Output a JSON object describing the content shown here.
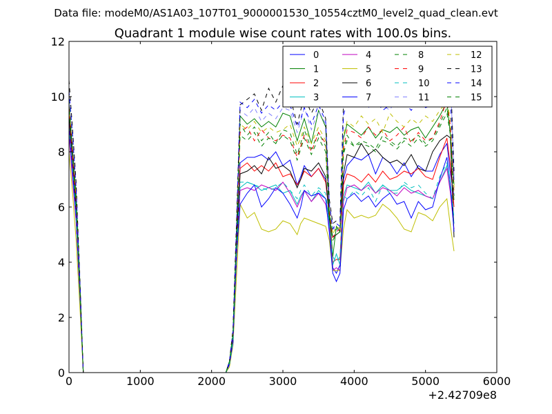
{
  "chart_data": {
    "type": "line",
    "suptitle": "Data file: modeM0/AS1A03_107T01_9000001530_10554cztM0_level2_quad_clean.evt",
    "title": "Quadrant 1 module wise count rates with 100.0s bins.",
    "xlabel": "",
    "ylabel": "",
    "xlim": [
      0,
      6000
    ],
    "ylim": [
      0,
      12
    ],
    "x_offset_label": "+2.42709e8",
    "xticks": [
      0,
      1000,
      2000,
      3000,
      4000,
      5000,
      6000
    ],
    "xtick_labels": [
      "0",
      "1000",
      "2000",
      "3000",
      "4000",
      "5000",
      "6000"
    ],
    "yticks": [
      0,
      2,
      4,
      6,
      8,
      10,
      12
    ],
    "ytick_labels": [
      "0",
      "2",
      "4",
      "6",
      "8",
      "10",
      "12"
    ],
    "legend_position": "top-right",
    "x": [
      0,
      50,
      100,
      150,
      200,
      2200,
      2250,
      2300,
      2350,
      2400,
      2500,
      2600,
      2700,
      2800,
      2900,
      3000,
      3100,
      3200,
      3250,
      3300,
      3400,
      3500,
      3600,
      3650,
      3700,
      3750,
      3800,
      3850,
      3900,
      4000,
      4100,
      4200,
      4300,
      4400,
      4500,
      4600,
      4700,
      4800,
      4900,
      5000,
      5100,
      5200,
      5300,
      5350,
      5400
    ],
    "series": [
      {
        "name": "0",
        "color": "#0000ff",
        "dash": "solid",
        "values": [
          9.1,
          7.8,
          5.9,
          3.1,
          0,
          0,
          0.3,
          1.2,
          4.6,
          7.6,
          7.8,
          7.8,
          7.9,
          7.7,
          8.0,
          7.5,
          7.7,
          6.8,
          7.1,
          7.5,
          7.1,
          7.4,
          7.0,
          5.8,
          3.8,
          3.6,
          3.9,
          7.0,
          7.5,
          7.8,
          7.7,
          7.9,
          7.2,
          7.8,
          7.6,
          7.2,
          7.6,
          7.1,
          7.5,
          7.3,
          7.3,
          7.9,
          8.3,
          7.2,
          6.4
        ]
      },
      {
        "name": "1",
        "color": "#008000",
        "dash": "solid",
        "values": [
          9.8,
          8.0,
          6.4,
          3.4,
          0,
          0,
          0.4,
          1.4,
          5.0,
          9.3,
          9.0,
          9.2,
          8.9,
          9.1,
          8.9,
          9.4,
          9.3,
          8.4,
          8.8,
          9.2,
          8.3,
          9.5,
          8.9,
          5.9,
          4.2,
          5.3,
          5.1,
          8.5,
          9.0,
          8.8,
          8.6,
          8.9,
          8.5,
          8.8,
          8.7,
          8.9,
          8.6,
          8.8,
          8.9,
          8.5,
          8.9,
          9.3,
          9.8,
          8.6,
          6.8
        ]
      },
      {
        "name": "2",
        "color": "#ff0000",
        "dash": "solid",
        "values": [
          9.0,
          7.5,
          5.8,
          3.2,
          0,
          0,
          0.3,
          1.2,
          4.5,
          7.4,
          7.6,
          7.3,
          7.5,
          7.3,
          7.6,
          7.1,
          7.2,
          6.8,
          7.0,
          7.3,
          7.1,
          7.4,
          6.9,
          5.7,
          4.0,
          4.1,
          4.1,
          6.8,
          7.2,
          7.1,
          6.9,
          7.2,
          6.9,
          7.3,
          7.0,
          7.1,
          7.3,
          7.2,
          7.4,
          7.1,
          7.0,
          7.8,
          8.5,
          7.5,
          6.0
        ]
      },
      {
        "name": "3",
        "color": "#00bfbf",
        "dash": "solid",
        "values": [
          8.8,
          7.3,
          5.6,
          3.0,
          0,
          0,
          0.3,
          1.1,
          4.2,
          6.7,
          6.9,
          6.8,
          6.6,
          6.7,
          6.8,
          6.5,
          6.6,
          6.1,
          6.4,
          6.6,
          6.2,
          6.6,
          6.3,
          5.5,
          3.9,
          4.3,
          3.9,
          6.4,
          6.8,
          6.7,
          6.6,
          6.9,
          6.5,
          6.8,
          6.6,
          6.6,
          6.8,
          6.6,
          6.5,
          6.4,
          6.3,
          6.9,
          7.5,
          6.6,
          5.4
        ]
      },
      {
        "name": "4",
        "color": "#bf00bf",
        "dash": "solid",
        "values": [
          8.6,
          7.0,
          5.5,
          2.9,
          0,
          0,
          0.3,
          1.1,
          4.1,
          6.6,
          6.7,
          6.6,
          6.8,
          6.7,
          6.6,
          6.9,
          6.5,
          6.0,
          6.3,
          6.6,
          6.2,
          6.5,
          6.1,
          5.3,
          3.7,
          3.8,
          3.7,
          6.2,
          6.7,
          6.8,
          6.6,
          6.8,
          6.5,
          6.7,
          6.6,
          6.4,
          6.7,
          6.5,
          6.6,
          6.4,
          6.3,
          6.9,
          7.4,
          6.5,
          5.2
        ]
      },
      {
        "name": "5",
        "color": "#bfbf00",
        "dash": "solid",
        "values": [
          8.0,
          6.5,
          4.8,
          2.5,
          0,
          0,
          0.2,
          1.0,
          3.5,
          6.1,
          5.6,
          5.8,
          5.2,
          5.1,
          5.2,
          5.5,
          5.4,
          5.0,
          5.4,
          5.6,
          5.5,
          5.4,
          5.3,
          4.8,
          3.7,
          3.7,
          3.7,
          5.2,
          5.9,
          5.6,
          5.7,
          5.6,
          5.7,
          6.1,
          5.9,
          5.6,
          5.2,
          5.1,
          5.8,
          5.7,
          5.5,
          6.0,
          6.3,
          5.3,
          4.4
        ]
      },
      {
        "name": "6",
        "color": "#000000",
        "dash": "solid",
        "values": [
          9.3,
          7.9,
          6.0,
          3.2,
          0,
          0,
          0.3,
          1.2,
          4.6,
          7.2,
          7.3,
          7.5,
          7.2,
          7.8,
          7.4,
          7.5,
          7.3,
          6.7,
          7.0,
          7.4,
          7.3,
          7.6,
          7.1,
          5.6,
          4.9,
          5.0,
          5.1,
          7.2,
          7.9,
          7.8,
          8.3,
          7.9,
          8.1,
          7.8,
          7.6,
          7.7,
          7.5,
          7.9,
          7.4,
          7.3,
          8.0,
          8.4,
          8.6,
          8.5,
          4.9
        ]
      },
      {
        "name": "7",
        "color": "#0000ff",
        "dash": "solid",
        "values": [
          8.9,
          7.2,
          5.6,
          3.0,
          0,
          0,
          0.3,
          1.1,
          4.3,
          6.1,
          6.5,
          6.8,
          6.0,
          6.3,
          6.7,
          6.5,
          6.1,
          5.6,
          6.0,
          6.6,
          6.4,
          6.5,
          6.3,
          5.1,
          3.6,
          3.3,
          3.6,
          5.9,
          6.3,
          6.5,
          6.2,
          6.4,
          6.0,
          6.3,
          6.5,
          6.1,
          6.2,
          5.6,
          6.2,
          5.9,
          6.0,
          7.0,
          7.8,
          6.8,
          5.1
        ]
      },
      {
        "name": "8",
        "color": "#008000",
        "dash": "dashed",
        "values": [
          9.9,
          8.2,
          6.5,
          3.4,
          0,
          0,
          0.4,
          1.5,
          5.2,
          9.0,
          8.6,
          8.9,
          8.4,
          8.7,
          8.3,
          8.8,
          8.7,
          7.9,
          8.3,
          8.8,
          8.1,
          8.7,
          8.2,
          5.8,
          5.1,
          5.2,
          5.2,
          8.0,
          8.6,
          8.2,
          8.4,
          8.3,
          8.1,
          8.6,
          8.4,
          8.2,
          8.5,
          8.4,
          8.6,
          8.3,
          8.5,
          9.0,
          9.6,
          8.7,
          6.4
        ]
      },
      {
        "name": "9",
        "color": "#ff0000",
        "dash": "dashed",
        "values": [
          9.6,
          8.1,
          6.3,
          3.3,
          0,
          0,
          0.4,
          1.4,
          5.0,
          8.7,
          8.9,
          8.4,
          8.8,
          8.5,
          8.4,
          8.6,
          8.5,
          7.8,
          8.2,
          8.6,
          8.0,
          8.7,
          8.3,
          5.9,
          4.9,
          5.1,
          5.2,
          8.1,
          8.8,
          8.7,
          8.5,
          8.9,
          8.6,
          8.8,
          8.4,
          8.6,
          8.9,
          8.3,
          8.7,
          8.4,
          8.5,
          9.1,
          9.9,
          8.9,
          6.5
        ]
      },
      {
        "name": "10",
        "color": "#00bfbf",
        "dash": "dashed",
        "values": [
          8.9,
          7.4,
          5.8,
          3.1,
          0,
          0,
          0.3,
          1.2,
          4.4,
          6.9,
          6.9,
          6.8,
          6.7,
          6.6,
          6.7,
          6.9,
          6.6,
          6.3,
          6.6,
          6.8,
          6.4,
          6.7,
          6.5,
          5.4,
          4.2,
          4.0,
          4.2,
          6.4,
          6.3,
          6.6,
          6.4,
          6.7,
          6.2,
          6.8,
          6.5,
          6.5,
          6.9,
          6.7,
          6.8,
          6.5,
          6.3,
          7.1,
          7.6,
          6.9,
          5.6
        ]
      },
      {
        "name": "11",
        "color": "#8080ff",
        "dash": "dashed",
        "values": [
          10.0,
          8.4,
          6.6,
          3.5,
          0,
          0,
          0.4,
          1.5,
          5.4,
          9.5,
          9.3,
          9.6,
          9.1,
          9.4,
          9.2,
          9.6,
          9.5,
          8.7,
          9.1,
          9.6,
          8.8,
          9.5,
          9.0,
          6.2,
          5.3,
          5.1,
          5.3,
          9.6,
          10.4,
          10.1,
          10.3,
          9.6,
          10.2,
          9.7,
          9.5,
          10.0,
          10.4,
          9.7,
          10.9,
          10.0,
          9.7,
          10.6,
          11.1,
          10.7,
          7.1
        ]
      },
      {
        "name": "12",
        "color": "#bfbf00",
        "dash": "dashed",
        "values": [
          9.7,
          8.1,
          6.4,
          3.3,
          0,
          0,
          0.4,
          1.4,
          5.1,
          9.0,
          8.8,
          9.1,
          8.7,
          8.9,
          8.7,
          8.8,
          9.0,
          8.2,
          8.5,
          8.9,
          8.3,
          8.9,
          8.4,
          6.0,
          5.0,
          5.3,
          5.2,
          8.6,
          9.1,
          8.9,
          9.3,
          9.0,
          9.2,
          8.7,
          9.4,
          9.1,
          8.9,
          9.2,
          9.0,
          9.3,
          9.1,
          9.5,
          9.8,
          9.2,
          6.7
        ]
      },
      {
        "name": "13",
        "color": "#000000",
        "dash": "dashed",
        "values": [
          10.6,
          8.8,
          6.9,
          3.6,
          0,
          0,
          0.4,
          1.6,
          5.5,
          9.7,
          9.9,
          10.1,
          9.5,
          10.3,
          9.8,
          10.4,
          10.0,
          9.0,
          9.5,
          10.0,
          9.4,
          9.9,
          9.2,
          6.3,
          5.4,
          5.5,
          5.5,
          9.8,
          10.4,
          10.0,
          10.6,
          10.2,
          10.8,
          10.1,
          10.5,
          10.2,
          10.6,
          10.4,
          10.8,
          10.5,
          11.0,
          10.8,
          11.2,
          10.9,
          7.3
        ]
      },
      {
        "name": "14",
        "color": "#0000ff",
        "dash": "dashed",
        "values": [
          10.2,
          8.6,
          6.7,
          3.5,
          0,
          0,
          0.4,
          1.5,
          5.3,
          9.8,
          9.6,
          9.9,
          9.4,
          9.7,
          9.5,
          9.8,
          9.7,
          8.9,
          9.2,
          9.6,
          9.0,
          9.7,
          9.1,
          6.1,
          5.2,
          5.4,
          5.3,
          9.3,
          9.9,
          9.7,
          9.8,
          9.6,
          9.9,
          9.5,
          9.7,
          9.6,
          9.8,
          9.5,
          9.9,
          9.6,
          9.7,
          10.1,
          10.4,
          9.9,
          6.9
        ]
      },
      {
        "name": "15",
        "color": "#008000",
        "dash": "dashed",
        "values": [
          9.5,
          8.0,
          6.2,
          3.3,
          0,
          0,
          0.4,
          1.4,
          4.9,
          8.6,
          8.4,
          8.7,
          8.2,
          8.5,
          8.3,
          8.6,
          8.4,
          7.7,
          8.1,
          8.5,
          7.9,
          8.5,
          8.0,
          5.7,
          4.8,
          5.0,
          5.1,
          7.9,
          8.4,
          8.2,
          8.3,
          8.2,
          8.0,
          8.4,
          8.3,
          8.1,
          8.4,
          8.2,
          8.5,
          8.2,
          8.4,
          8.9,
          9.4,
          8.6,
          6.2
        ]
      }
    ]
  }
}
